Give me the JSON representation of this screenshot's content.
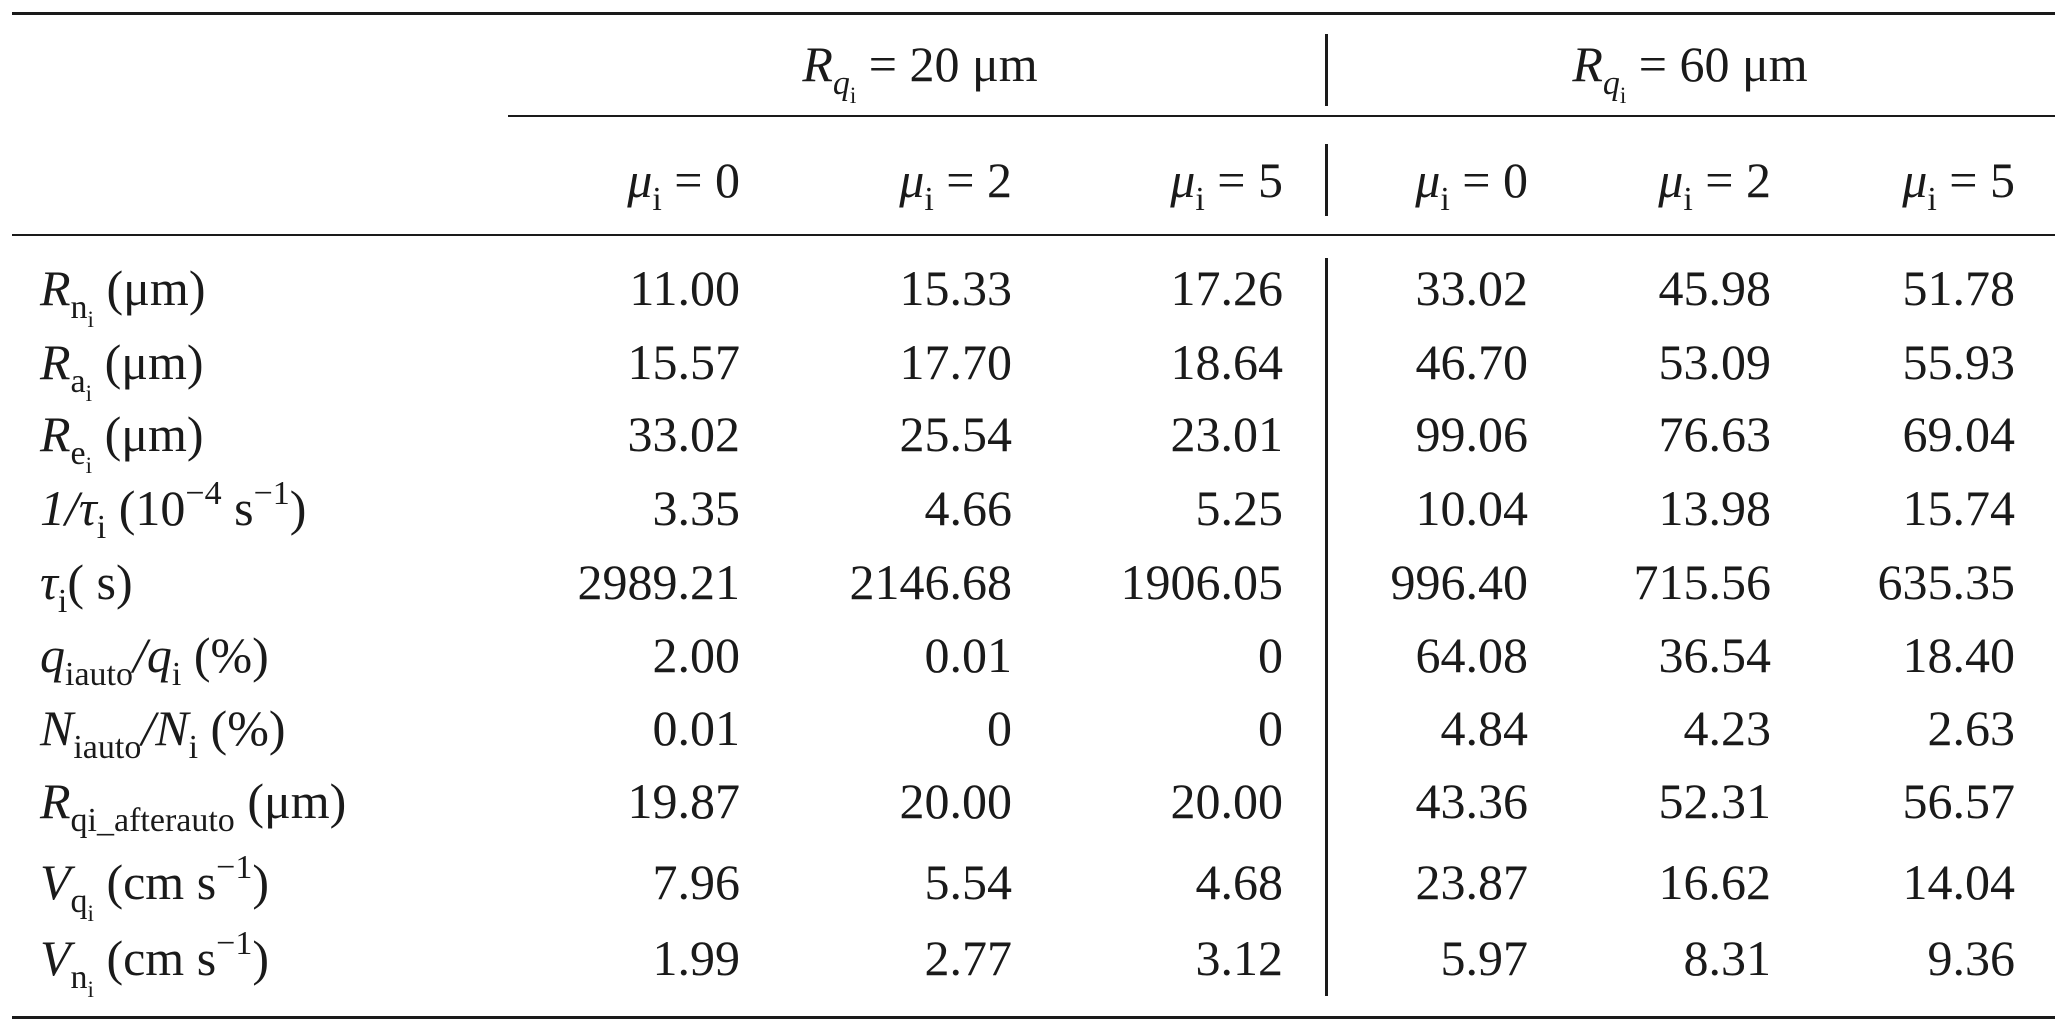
{
  "table": {
    "group_headers": [
      {
        "symbol": "R",
        "sub_symbol": "q",
        "sub_sub": "i",
        "value": "= 20 μm"
      },
      {
        "symbol": "R",
        "sub_symbol": "q",
        "sub_sub": "i",
        "value": "= 60 μm"
      }
    ],
    "col_headers": [
      {
        "symbol": "μ",
        "sub": "i",
        "value": "= 0"
      },
      {
        "symbol": "μ",
        "sub": "i",
        "value": "= 2"
      },
      {
        "symbol": "μ",
        "sub": "i",
        "value": "= 5"
      },
      {
        "symbol": "μ",
        "sub": "i",
        "value": "= 0"
      },
      {
        "symbol": "μ",
        "sub": "i",
        "value": "= 2"
      },
      {
        "symbol": "μ",
        "sub": "i",
        "value": "= 5"
      }
    ],
    "rows": [
      {
        "label_main": "R",
        "label_sub": "n",
        "label_subsub": "i",
        "label_unit": " (μm)",
        "values": [
          "11.00",
          "15.33",
          "17.26",
          "33.02",
          "45.98",
          "51.78"
        ]
      },
      {
        "label_main": "R",
        "label_sub": "a",
        "label_subsub": "i",
        "label_unit": " (μm)",
        "values": [
          "15.57",
          "17.70",
          "18.64",
          "46.70",
          "53.09",
          "55.93"
        ]
      },
      {
        "label_main": "R",
        "label_sub": "e",
        "label_subsub": "i",
        "label_unit": " (μm)",
        "values": [
          "33.02",
          "25.54",
          "23.01",
          "99.06",
          "76.63",
          "69.04"
        ]
      },
      {
        "label_main": "1/τ",
        "label_sub": "i",
        "label_unit": " (10",
        "label_exp1": "−4",
        "label_unit2": " s",
        "label_exp2": "−1",
        "label_unit3": ")",
        "values": [
          "3.35",
          "4.66",
          "5.25",
          "10.04",
          "13.98",
          "15.74"
        ]
      },
      {
        "label_main": "τ",
        "label_sub": "i",
        "label_unit": "( s)",
        "values": [
          "2989.21",
          "2146.68",
          "1906.05",
          "996.40",
          "715.56",
          "635.35"
        ]
      },
      {
        "label_main": "q",
        "label_sub": "iauto",
        "label_mid": "/q",
        "label_sub2": "i",
        "label_unit": " (%)",
        "values": [
          "2.00",
          "0.01",
          "0",
          "64.08",
          "36.54",
          "18.40"
        ]
      },
      {
        "label_main": "N",
        "label_sub": "iauto",
        "label_mid": "/N",
        "label_sub2": "i",
        "label_unit": " (%)",
        "values": [
          "0.01",
          "0",
          "0",
          "4.84",
          "4.23",
          "2.63"
        ]
      },
      {
        "label_main": "R",
        "label_sub": "qi_afterauto",
        "label_unit": " (μm)",
        "values": [
          "19.87",
          "20.00",
          "20.00",
          "43.36",
          "52.31",
          "56.57"
        ]
      },
      {
        "label_main": "V",
        "label_sub": "q",
        "label_subsub": "i",
        "label_unit": " (cm s",
        "label_exp1": "−1",
        "label_unit2": ")",
        "values": [
          "7.96",
          "5.54",
          "4.68",
          "23.87",
          "16.62",
          "14.04"
        ]
      },
      {
        "label_main": "V",
        "label_sub": "n",
        "label_subsub": "i",
        "label_unit": " (cm s",
        "label_exp1": "−1",
        "label_unit2": ")",
        "values": [
          "1.99",
          "2.77",
          "3.12",
          "5.97",
          "8.31",
          "9.36"
        ]
      }
    ]
  }
}
